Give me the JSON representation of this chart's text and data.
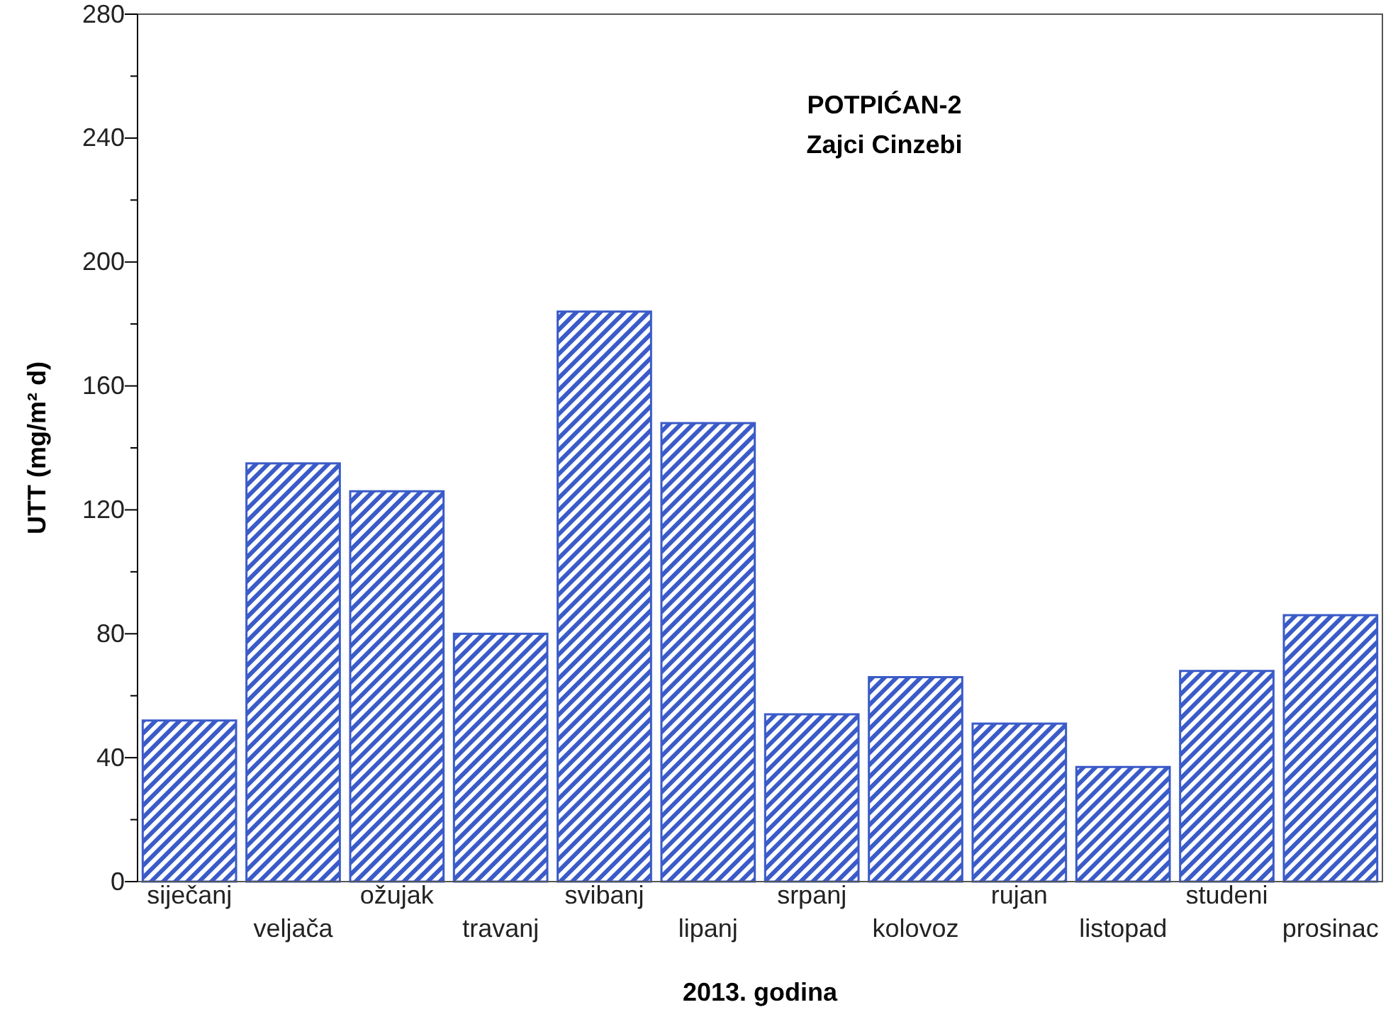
{
  "chart_data": {
    "type": "bar",
    "title": "POTPIĆAN-2",
    "subtitle": "Zajci Cinzebi",
    "xlabel": "2013. godina",
    "ylabel": "UTT (mg/m² d)",
    "categories": [
      "siječanj",
      "veljača",
      "ožujak",
      "travanj",
      "svibanj",
      "lipanj",
      "srpanj",
      "kolovoz",
      "rujan",
      "listopad",
      "studeni",
      "prosinac"
    ],
    "values": [
      52,
      135,
      126,
      80,
      184,
      148,
      54,
      66,
      51,
      37,
      68,
      86
    ],
    "color": "#3a5bc8",
    "ylim": [
      0,
      280
    ],
    "yticks": [
      0,
      {
        "value": 20,
        "label": null
      },
      40,
      {
        "value": 60,
        "label": null
      },
      80,
      {
        "value": 100,
        "label": null
      },
      120,
      {
        "value": 140,
        "label": null
      },
      160,
      {
        "value": 180,
        "label": null
      },
      200,
      {
        "value": 220,
        "label": null
      },
      240,
      {
        "value": 260,
        "label": null
      },
      280
    ],
    "grid": false
  }
}
